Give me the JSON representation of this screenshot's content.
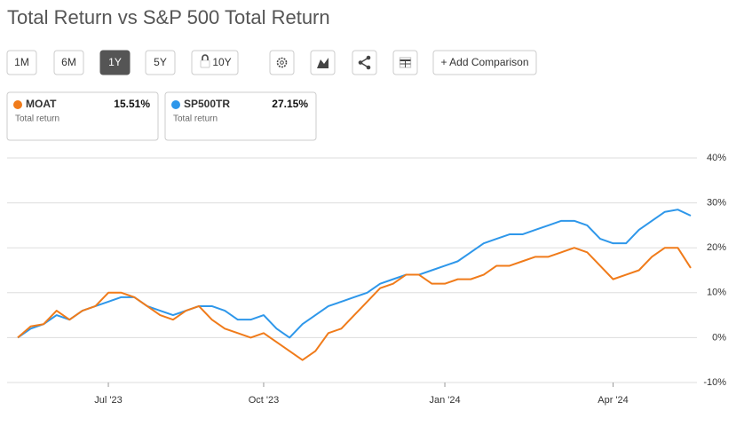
{
  "title": "Total Return vs S&P 500 Total Return",
  "buttons": [
    "1M",
    "6M",
    "1Y",
    "5Y",
    "10Y"
  ],
  "active_button": 2,
  "add_button": "+ Add Comparison",
  "cards": [
    {
      "subtitle": "Total return",
      "value": "15.51%"
    },
    {
      "subtitle": "Total return",
      "value": "27.15%"
    }
  ],
  "chart_data": {
    "type": "line",
    "categories": [
      null,
      null,
      null,
      null,
      null,
      null,
      null,
      "Jul '23",
      null,
      null,
      null,
      null,
      null,
      null,
      null,
      null,
      null,
      null,
      null,
      "Oct '23",
      null,
      null,
      null,
      null,
      null,
      null,
      null,
      null,
      null,
      null,
      null,
      null,
      null,
      "Jan '24",
      null,
      null,
      null,
      null,
      null,
      null,
      null,
      null,
      null,
      null,
      null,
      null,
      "Apr '24",
      null,
      null,
      null,
      null,
      null,
      null
    ],
    "series": [
      {
        "name": "MOAT",
        "color": "#f07b1a",
        "values": [
          0,
          2.5,
          3,
          6,
          4,
          6,
          7,
          10,
          10,
          9,
          7,
          5,
          4,
          6,
          7,
          4,
          2,
          1,
          0,
          1,
          -1,
          -3,
          -5,
          -3,
          1,
          2,
          5,
          8,
          11,
          12,
          14,
          14,
          12,
          12,
          13,
          13,
          14,
          16,
          16,
          17,
          18,
          18,
          19,
          20,
          19,
          16,
          13,
          14,
          15,
          18,
          20,
          20,
          15.51
        ]
      },
      {
        "name": "SP500TR",
        "color": "#2e97ea",
        "values": [
          0,
          2,
          3,
          5,
          4,
          6,
          7,
          8,
          9,
          9,
          7,
          6,
          5,
          6,
          7,
          7,
          6,
          4,
          4,
          5,
          2,
          0,
          3,
          5,
          7,
          8,
          9,
          10,
          12,
          13,
          14,
          14,
          15,
          16,
          17,
          19,
          21,
          22,
          23,
          23,
          24,
          25,
          26,
          26,
          25,
          22,
          21,
          21,
          24,
          26,
          28,
          28.5,
          27.15
        ]
      }
    ],
    "ylim": [
      -10,
      40
    ],
    "yticks": [
      {
        "value": -10,
        "label": "-10%"
      },
      {
        "value": 0,
        "label": "0%"
      },
      {
        "value": 10,
        "label": "10%"
      },
      {
        "value": 20,
        "label": "20%"
      },
      {
        "value": 30,
        "label": "30%"
      },
      {
        "value": 40,
        "label": "40%"
      }
    ],
    "grid": true
  }
}
